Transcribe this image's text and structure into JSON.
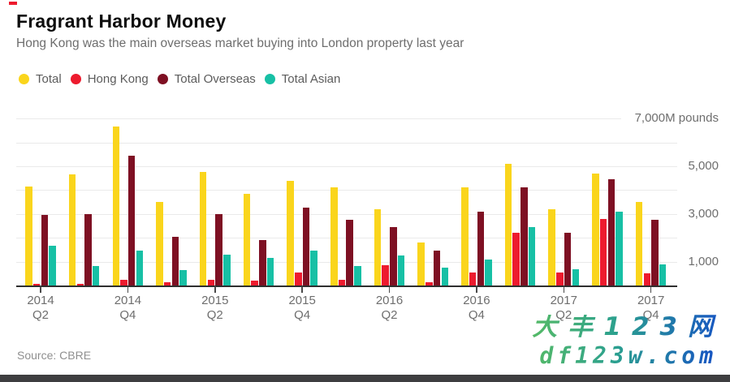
{
  "header": {
    "title": "Fragrant Harbor Money",
    "subtitle": "Hong Kong was the main overseas market buying into London property last year"
  },
  "legend": [
    {
      "label": "Total",
      "color": "#FAD51C"
    },
    {
      "label": "Hong Kong",
      "color": "#ED1B2E"
    },
    {
      "label": "Total Overseas",
      "color": "#7E1023"
    },
    {
      "label": "Total Asian",
      "color": "#17C0A5"
    }
  ],
  "chart_data": {
    "type": "bar",
    "title": "Fragrant Harbor Money",
    "subtitle": "Hong Kong was the main overseas market buying into London property last year",
    "unit": "M pounds",
    "categories": [
      "2014 Q2",
      "2014 Q3",
      "2014 Q4",
      "2015 Q1",
      "2015 Q2",
      "2015 Q3",
      "2015 Q4",
      "2016 Q1",
      "2016 Q2",
      "2016 Q3",
      "2016 Q4",
      "2017 Q1",
      "2017 Q2",
      "2017 Q3",
      "2017 Q4"
    ],
    "series": [
      {
        "name": "Total",
        "color": "#FAD51C",
        "values": [
          4150,
          4650,
          6650,
          3500,
          4750,
          3850,
          4400,
          4100,
          3200,
          1800,
          4100,
          5100,
          3200,
          4700,
          3500
        ]
      },
      {
        "name": "Hong Kong",
        "color": "#ED1B2E",
        "values": [
          80,
          60,
          250,
          120,
          250,
          200,
          550,
          250,
          850,
          150,
          550,
          2200,
          550,
          2800,
          500
        ]
      },
      {
        "name": "Total Overseas",
        "color": "#7E1023",
        "values": [
          2950,
          3000,
          5450,
          2050,
          3000,
          1900,
          3250,
          2750,
          2450,
          1450,
          3100,
          4100,
          2200,
          4450,
          2750
        ]
      },
      {
        "name": "Total Asian",
        "color": "#17C0A5",
        "values": [
          1650,
          800,
          1450,
          650,
          1300,
          1150,
          1450,
          800,
          1250,
          750,
          1100,
          2450,
          680,
          3100,
          870
        ]
      }
    ],
    "y_axis": {
      "ylim": [
        0,
        7000
      ],
      "gridline_step": 1000,
      "top_label": "7,000M pounds",
      "tick_values": [
        1000,
        3000,
        5000
      ],
      "tick_labels": [
        "1,000",
        "3,000",
        "5,000"
      ],
      "grid": true
    },
    "x_axis": {
      "tick_labels": [
        {
          "year": "2014",
          "quarter": "Q2"
        },
        {
          "year": "2014",
          "quarter": "Q4"
        },
        {
          "year": "2015",
          "quarter": "Q2"
        },
        {
          "year": "2015",
          "quarter": "Q4"
        },
        {
          "year": "2016",
          "quarter": "Q2"
        },
        {
          "year": "2016",
          "quarter": "Q4"
        },
        {
          "year": "2017",
          "quarter": "Q2"
        },
        {
          "year": "2017",
          "quarter": "Q4"
        }
      ],
      "labeled_category_indices": [
        0,
        2,
        4,
        6,
        8,
        10,
        12,
        14
      ]
    },
    "legend_position": "top-left"
  },
  "source": {
    "text": "Source: CBRE"
  },
  "watermark": {
    "line1": "大丰123网",
    "line2": "df123w.com",
    "color_start": "#55BA67",
    "color_end": "#1653C4"
  }
}
